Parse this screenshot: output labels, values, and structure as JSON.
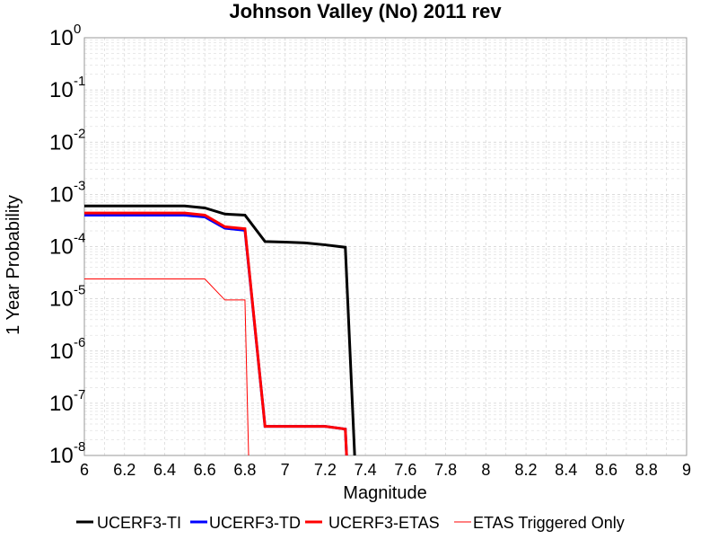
{
  "chart_data": {
    "type": "line",
    "title": "Johnson Valley (No) 2011 rev",
    "xlabel": "Magnitude",
    "ylabel": "1 Year Probability",
    "xlim": [
      6,
      9
    ],
    "ylim": [
      1e-08,
      1
    ],
    "yscale": "log",
    "grid": true,
    "legend_position": "bottom",
    "x_ticks": [
      "6",
      "6.2",
      "6.4",
      "6.6",
      "6.8",
      "7",
      "7.2",
      "7.4",
      "7.6",
      "7.8",
      "8",
      "8.2",
      "8.4",
      "8.6",
      "8.8",
      "9"
    ],
    "y_ticks": [
      {
        "base": "10",
        "exp": "0"
      },
      {
        "base": "10",
        "exp": "-1"
      },
      {
        "base": "10",
        "exp": "-2"
      },
      {
        "base": "10",
        "exp": "-3"
      },
      {
        "base": "10",
        "exp": "-4"
      },
      {
        "base": "10",
        "exp": "-5"
      },
      {
        "base": "10",
        "exp": "-6"
      },
      {
        "base": "10",
        "exp": "-7"
      },
      {
        "base": "10",
        "exp": "-8"
      }
    ],
    "series": [
      {
        "name": "UCERF3-TI",
        "color": "#000000",
        "width": 3,
        "x": [
          6.0,
          6.5,
          6.6,
          6.7,
          6.8,
          6.9,
          7.0,
          7.1,
          7.2,
          7.3,
          7.35
        ],
        "y": [
          0.0006,
          0.0006,
          0.00055,
          0.00042,
          0.0004,
          0.000125,
          0.000122,
          0.000118,
          0.000108,
          9.7e-05,
          5e-09
        ]
      },
      {
        "name": "UCERF3-TD",
        "color": "#0000ff",
        "width": 3,
        "x": [
          6.0,
          6.5,
          6.6,
          6.7,
          6.8,
          6.9,
          7.0,
          7.1,
          7.2,
          7.3,
          7.31
        ],
        "y": [
          0.0004,
          0.0004,
          0.00037,
          0.000225,
          0.000205,
          3.6e-08,
          3.6e-08,
          3.6e-08,
          3.6e-08,
          3.2e-08,
          5e-09
        ]
      },
      {
        "name": "UCERF3-ETAS",
        "color": "#ff0000",
        "width": 3,
        "x": [
          6.0,
          6.5,
          6.6,
          6.7,
          6.8,
          6.9,
          7.0,
          7.1,
          7.2,
          7.3,
          7.31
        ],
        "y": [
          0.00044,
          0.00044,
          0.0004,
          0.00024,
          0.00022,
          3.6e-08,
          3.6e-08,
          3.6e-08,
          3.6e-08,
          3.2e-08,
          5e-09
        ]
      },
      {
        "name": "ETAS Triggered Only",
        "color": "#ff0000",
        "width": 1,
        "x": [
          6.0,
          6.5,
          6.6,
          6.7,
          6.8,
          6.82
        ],
        "y": [
          2.4e-05,
          2.4e-05,
          2.4e-05,
          9.5e-06,
          9.5e-06,
          5e-09
        ]
      }
    ]
  }
}
